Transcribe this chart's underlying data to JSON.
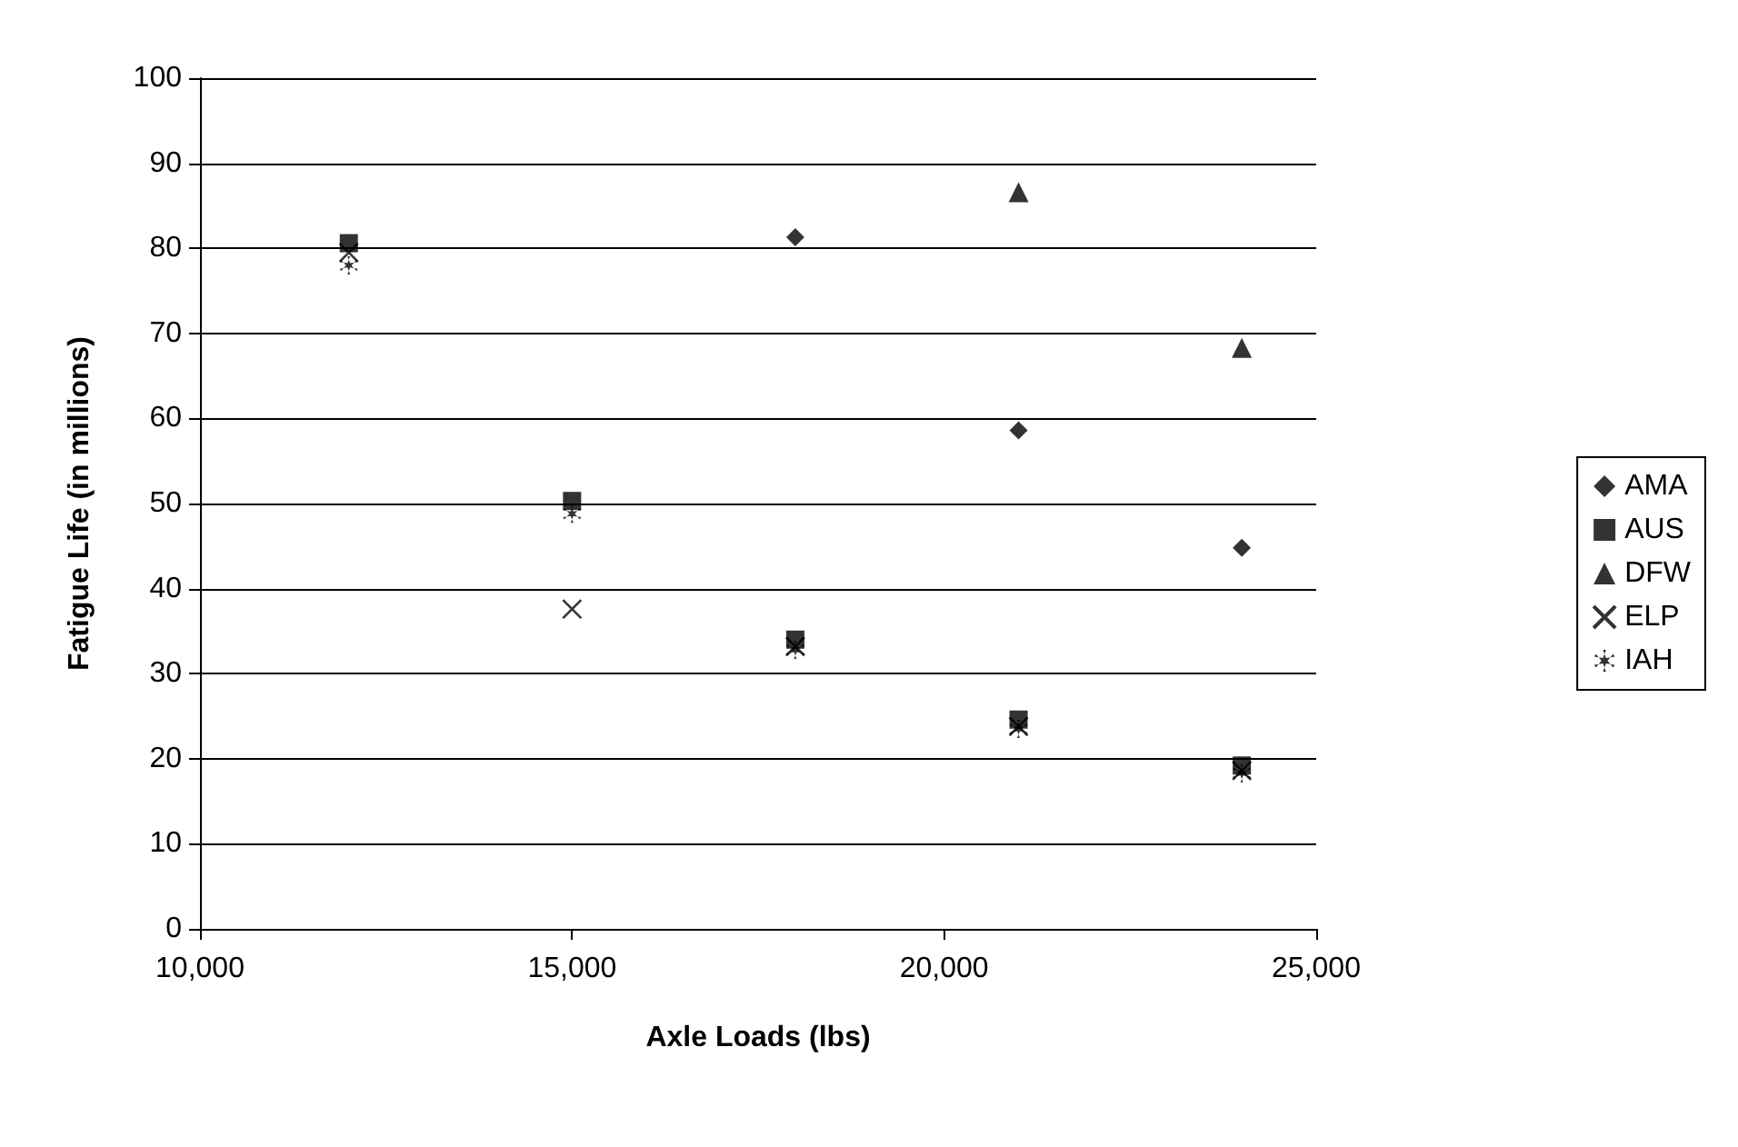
{
  "chart_data": {
    "type": "scatter",
    "xlabel": "Axle Loads (lbs)",
    "ylabel": "Fatigue Life (in millions)",
    "xlim": [
      10000,
      25000
    ],
    "xticks": [
      {
        "value": 10000,
        "label": "10,000"
      },
      {
        "value": 15000,
        "label": "15,000"
      },
      {
        "value": 20000,
        "label": "20,000"
      },
      {
        "value": 25000,
        "label": "25,000"
      }
    ],
    "ylim": [
      0,
      100
    ],
    "yticks": [
      0,
      10,
      20,
      30,
      40,
      50,
      60,
      70,
      80,
      90,
      100
    ],
    "grid": "y",
    "legend": "right",
    "series": [
      {
        "name": "AMA",
        "color": "#000000",
        "marker": "diamond",
        "x": [
          18000,
          21000,
          24000
        ],
        "values": [
          81.3,
          58.6,
          44.8
        ]
      },
      {
        "name": "AUS",
        "color": "#000000",
        "marker": "square",
        "x": [
          12000,
          15000,
          18000,
          21000,
          24000
        ],
        "values": [
          80.6,
          50.3,
          34.0,
          24.6,
          19.2
        ]
      },
      {
        "name": "DFW",
        "color": "#000000",
        "marker": "triangle",
        "x": [
          21000,
          24000
        ],
        "values": [
          86.6,
          68.3
        ]
      },
      {
        "name": "ELP",
        "color": "#000000",
        "marker": "cross",
        "x": [
          12000,
          15000,
          18000,
          21000,
          24000
        ],
        "values": [
          79.5,
          37.6,
          33.2,
          23.8,
          18.6
        ]
      },
      {
        "name": "IAH",
        "color": "#000000",
        "marker": "star",
        "x": [
          12000,
          15000,
          18000,
          21000,
          24000
        ],
        "values": [
          78.0,
          48.8,
          32.8,
          23.5,
          18.3
        ]
      }
    ]
  }
}
